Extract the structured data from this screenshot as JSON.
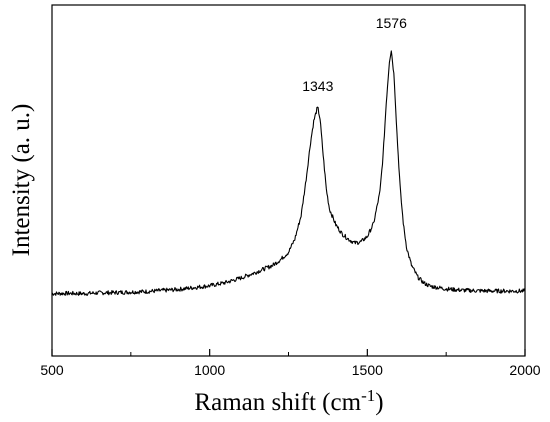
{
  "chart_data": {
    "type": "line",
    "title": "",
    "xlabel": "Raman shift (cm",
    "xlabel_sup": "-1",
    "xlabel_close": ")",
    "ylabel": "Intensity (a. u.)",
    "xlim": [
      500,
      2000
    ],
    "ylim": [
      0,
      1
    ],
    "xticks": [
      500,
      1000,
      1500,
      2000
    ],
    "xtick_labels": [
      "500",
      "1000",
      "1500",
      "2000"
    ],
    "y_tick_labels_shown": false,
    "grid": false,
    "legend": "none",
    "line_color": "#000000",
    "annotations": [
      {
        "text": "1343",
        "x": 1343,
        "y": 0.79
      },
      {
        "text": "1576",
        "x": 1576,
        "y": 1.03
      }
    ],
    "series": [
      {
        "x": [
          500,
          550,
          600,
          650,
          700,
          750,
          800,
          850,
          900,
          950,
          1000,
          1050,
          1100,
          1150,
          1200,
          1225,
          1250,
          1270,
          1290,
          1305,
          1320,
          1330,
          1340,
          1343,
          1350,
          1360,
          1370,
          1380,
          1400,
          1420,
          1440,
          1460,
          1480,
          1500,
          1520,
          1540,
          1550,
          1560,
          1570,
          1576,
          1585,
          1595,
          1605,
          1615,
          1625,
          1640,
          1660,
          1680,
          1700,
          1750,
          1800,
          1850,
          1900,
          1950,
          2000
        ],
        "y": [
          0.032,
          0.033,
          0.032,
          0.035,
          0.036,
          0.038,
          0.04,
          0.044,
          0.048,
          0.055,
          0.062,
          0.074,
          0.092,
          0.115,
          0.14,
          0.162,
          0.19,
          0.24,
          0.33,
          0.46,
          0.61,
          0.69,
          0.735,
          0.741,
          0.7,
          0.56,
          0.43,
          0.355,
          0.295,
          0.26,
          0.24,
          0.225,
          0.23,
          0.25,
          0.3,
          0.42,
          0.56,
          0.76,
          0.92,
          0.962,
          0.86,
          0.62,
          0.42,
          0.29,
          0.205,
          0.14,
          0.095,
          0.072,
          0.06,
          0.05,
          0.045,
          0.043,
          0.042,
          0.042,
          0.042
        ]
      }
    ]
  }
}
